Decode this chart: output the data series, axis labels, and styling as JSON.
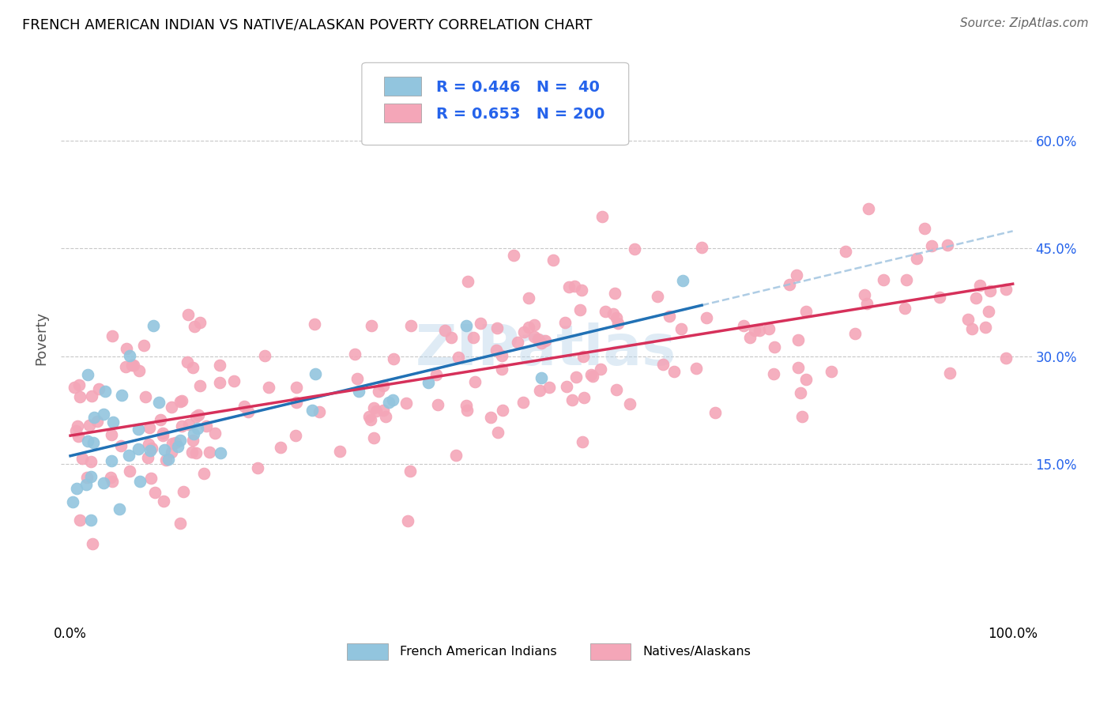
{
  "title": "FRENCH AMERICAN INDIAN VS NATIVE/ALASKAN POVERTY CORRELATION CHART",
  "source": "Source: ZipAtlas.com",
  "ylabel": "Poverty",
  "xlim": [
    -0.01,
    1.02
  ],
  "ylim": [
    -0.07,
    0.72
  ],
  "x_tick_labels": [
    "0.0%",
    "100.0%"
  ],
  "x_tick_pos": [
    0.0,
    1.0
  ],
  "y_tick_labels_right": [
    "15.0%",
    "30.0%",
    "45.0%",
    "60.0%"
  ],
  "y_tick_values_right": [
    0.15,
    0.3,
    0.45,
    0.6
  ],
  "watermark": "ZIPatlas",
  "blue_color": "#92c5de",
  "pink_color": "#f4a6b8",
  "blue_line_color": "#2171b5",
  "pink_line_color": "#d6305a",
  "grid_color": "#c8c8c8",
  "background_color": "#ffffff",
  "legend_text_color": "#2563eb",
  "right_tick_color": "#2563eb",
  "title_fontsize": 13,
  "source_fontsize": 11,
  "tick_fontsize": 12,
  "legend_fontsize": 14
}
